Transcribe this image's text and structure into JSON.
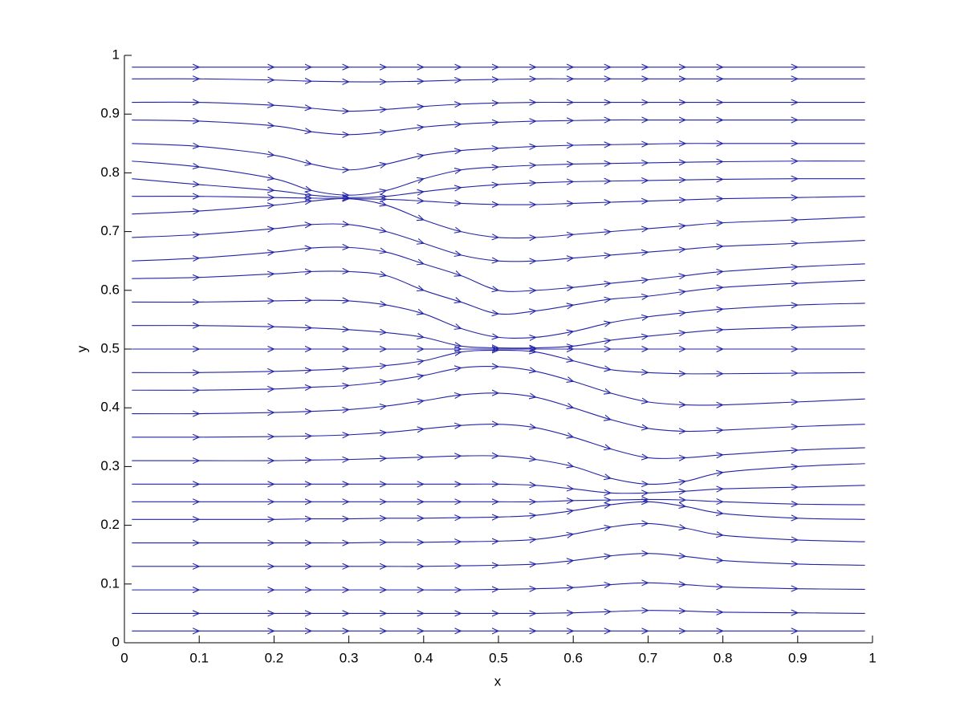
{
  "chart_data": {
    "type": "streamline",
    "xlabel": "x",
    "ylabel": "y",
    "color": "#2323a8",
    "xlim": [
      0,
      1
    ],
    "ylim": [
      0,
      1
    ],
    "xticks": [
      0,
      0.1,
      0.2,
      0.3,
      0.4,
      0.5,
      0.6,
      0.7,
      0.8,
      0.9,
      1
    ],
    "yticks": [
      0,
      0.1,
      0.2,
      0.3,
      0.4,
      0.5,
      0.6,
      0.7,
      0.8,
      0.9,
      1
    ],
    "x": [
      0.01,
      0.1,
      0.2,
      0.25,
      0.3,
      0.35,
      0.4,
      0.45,
      0.5,
      0.55,
      0.6,
      0.65,
      0.7,
      0.75,
      0.8,
      0.9,
      0.99
    ],
    "series": [
      {
        "values": [
          0.98,
          0.98,
          0.98,
          0.98,
          0.98,
          0.98,
          0.98,
          0.98,
          0.98,
          0.98,
          0.98,
          0.98,
          0.98,
          0.98,
          0.98,
          0.98,
          0.98
        ]
      },
      {
        "values": [
          0.96,
          0.96,
          0.958,
          0.956,
          0.955,
          0.955,
          0.956,
          0.958,
          0.959,
          0.96,
          0.96,
          0.96,
          0.96,
          0.96,
          0.96,
          0.96,
          0.96
        ]
      },
      {
        "values": [
          0.92,
          0.92,
          0.915,
          0.91,
          0.905,
          0.908,
          0.913,
          0.917,
          0.919,
          0.92,
          0.92,
          0.92,
          0.92,
          0.92,
          0.92,
          0.92,
          0.92
        ]
      },
      {
        "values": [
          0.89,
          0.888,
          0.88,
          0.87,
          0.865,
          0.87,
          0.878,
          0.883,
          0.886,
          0.888,
          0.889,
          0.89,
          0.89,
          0.89,
          0.89,
          0.89,
          0.89
        ]
      },
      {
        "values": [
          0.85,
          0.845,
          0.83,
          0.815,
          0.805,
          0.815,
          0.83,
          0.838,
          0.842,
          0.845,
          0.847,
          0.848,
          0.849,
          0.85,
          0.85,
          0.85,
          0.85
        ]
      },
      {
        "values": [
          0.82,
          0.81,
          0.79,
          0.77,
          0.762,
          0.77,
          0.79,
          0.805,
          0.81,
          0.813,
          0.815,
          0.816,
          0.817,
          0.818,
          0.819,
          0.82,
          0.82
        ]
      },
      {
        "values": [
          0.79,
          0.78,
          0.77,
          0.762,
          0.758,
          0.76,
          0.768,
          0.775,
          0.78,
          0.783,
          0.785,
          0.786,
          0.787,
          0.788,
          0.789,
          0.79,
          0.79
        ]
      },
      {
        "values": [
          0.76,
          0.76,
          0.758,
          0.757,
          0.756,
          0.755,
          0.752,
          0.748,
          0.746,
          0.746,
          0.748,
          0.75,
          0.752,
          0.754,
          0.756,
          0.758,
          0.76
        ]
      },
      {
        "values": [
          0.73,
          0.735,
          0.745,
          0.752,
          0.756,
          0.745,
          0.72,
          0.7,
          0.69,
          0.69,
          0.695,
          0.7,
          0.705,
          0.71,
          0.715,
          0.72,
          0.725
        ]
      },
      {
        "values": [
          0.69,
          0.695,
          0.705,
          0.712,
          0.712,
          0.7,
          0.68,
          0.66,
          0.65,
          0.65,
          0.655,
          0.66,
          0.665,
          0.67,
          0.675,
          0.68,
          0.685
        ]
      },
      {
        "values": [
          0.65,
          0.655,
          0.665,
          0.672,
          0.673,
          0.665,
          0.645,
          0.625,
          0.6,
          0.6,
          0.605,
          0.612,
          0.618,
          0.625,
          0.632,
          0.64,
          0.645
        ]
      },
      {
        "values": [
          0.62,
          0.622,
          0.628,
          0.632,
          0.632,
          0.625,
          0.6,
          0.58,
          0.56,
          0.565,
          0.575,
          0.585,
          0.59,
          0.598,
          0.605,
          0.612,
          0.617
        ]
      },
      {
        "values": [
          0.58,
          0.58,
          0.582,
          0.583,
          0.582,
          0.575,
          0.56,
          0.535,
          0.52,
          0.52,
          0.53,
          0.545,
          0.555,
          0.562,
          0.568,
          0.575,
          0.578
        ]
      },
      {
        "values": [
          0.54,
          0.54,
          0.538,
          0.536,
          0.533,
          0.528,
          0.52,
          0.505,
          0.502,
          0.502,
          0.505,
          0.515,
          0.522,
          0.528,
          0.533,
          0.537,
          0.54
        ]
      },
      {
        "values": [
          0.5,
          0.5,
          0.5,
          0.5,
          0.5,
          0.5,
          0.5,
          0.5,
          0.5,
          0.5,
          0.5,
          0.5,
          0.5,
          0.5,
          0.5,
          0.5,
          0.5
        ]
      },
      {
        "values": [
          0.46,
          0.46,
          0.462,
          0.464,
          0.467,
          0.472,
          0.48,
          0.495,
          0.498,
          0.495,
          0.48,
          0.465,
          0.46,
          0.458,
          0.458,
          0.459,
          0.46
        ]
      },
      {
        "values": [
          0.43,
          0.43,
          0.432,
          0.435,
          0.438,
          0.445,
          0.455,
          0.468,
          0.47,
          0.462,
          0.445,
          0.425,
          0.41,
          0.405,
          0.405,
          0.41,
          0.415
        ]
      },
      {
        "values": [
          0.39,
          0.39,
          0.392,
          0.394,
          0.397,
          0.403,
          0.412,
          0.422,
          0.425,
          0.418,
          0.4,
          0.38,
          0.365,
          0.36,
          0.362,
          0.368,
          0.372
        ]
      },
      {
        "values": [
          0.35,
          0.35,
          0.351,
          0.352,
          0.354,
          0.358,
          0.364,
          0.37,
          0.372,
          0.366,
          0.35,
          0.33,
          0.315,
          0.315,
          0.32,
          0.328,
          0.332
        ]
      },
      {
        "values": [
          0.31,
          0.31,
          0.31,
          0.311,
          0.312,
          0.314,
          0.316,
          0.318,
          0.318,
          0.312,
          0.3,
          0.28,
          0.27,
          0.275,
          0.29,
          0.3,
          0.305
        ]
      },
      {
        "values": [
          0.27,
          0.27,
          0.27,
          0.27,
          0.27,
          0.27,
          0.27,
          0.27,
          0.27,
          0.268,
          0.262,
          0.255,
          0.255,
          0.258,
          0.262,
          0.265,
          0.268
        ]
      },
      {
        "values": [
          0.24,
          0.24,
          0.24,
          0.24,
          0.24,
          0.24,
          0.24,
          0.24,
          0.24,
          0.24,
          0.242,
          0.243,
          0.244,
          0.243,
          0.24,
          0.236,
          0.235
        ]
      },
      {
        "values": [
          0.21,
          0.21,
          0.21,
          0.211,
          0.211,
          0.212,
          0.212,
          0.213,
          0.214,
          0.217,
          0.225,
          0.235,
          0.24,
          0.232,
          0.22,
          0.212,
          0.21
        ]
      },
      {
        "values": [
          0.17,
          0.17,
          0.17,
          0.17,
          0.17,
          0.171,
          0.171,
          0.172,
          0.173,
          0.176,
          0.185,
          0.197,
          0.203,
          0.195,
          0.183,
          0.175,
          0.172
        ]
      },
      {
        "values": [
          0.13,
          0.13,
          0.13,
          0.13,
          0.13,
          0.13,
          0.13,
          0.131,
          0.132,
          0.134,
          0.14,
          0.148,
          0.152,
          0.147,
          0.14,
          0.134,
          0.132
        ]
      },
      {
        "values": [
          0.09,
          0.09,
          0.09,
          0.09,
          0.09,
          0.09,
          0.09,
          0.09,
          0.091,
          0.092,
          0.094,
          0.099,
          0.102,
          0.099,
          0.095,
          0.092,
          0.091
        ]
      },
      {
        "values": [
          0.05,
          0.05,
          0.05,
          0.05,
          0.05,
          0.05,
          0.05,
          0.05,
          0.05,
          0.05,
          0.051,
          0.053,
          0.055,
          0.054,
          0.052,
          0.051,
          0.05
        ]
      },
      {
        "values": [
          0.02,
          0.02,
          0.02,
          0.02,
          0.02,
          0.02,
          0.02,
          0.02,
          0.02,
          0.02,
          0.02,
          0.02,
          0.02,
          0.02,
          0.02,
          0.02,
          0.02
        ]
      }
    ]
  }
}
